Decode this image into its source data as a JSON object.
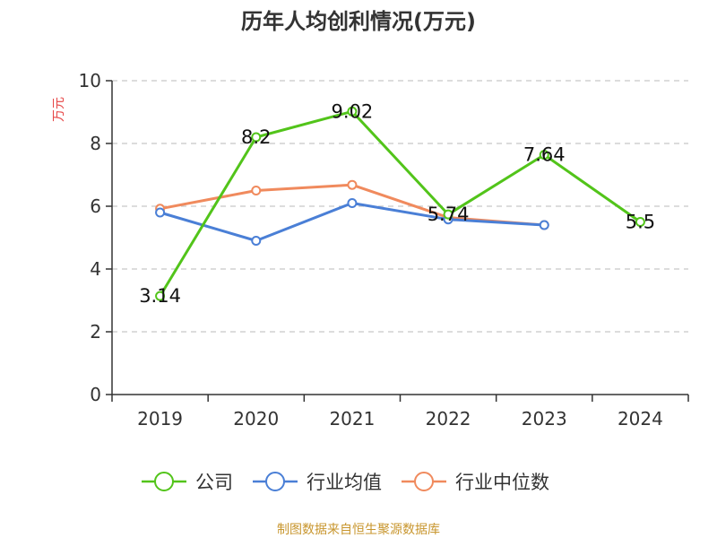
{
  "chart_data": {
    "type": "line",
    "title": "历年人均创利情况(万元)",
    "ylabel": "万元",
    "xlabel": "",
    "categories": [
      "2019",
      "2020",
      "2021",
      "2022",
      "2023",
      "2024"
    ],
    "ylim": [
      0,
      10
    ],
    "yticks": [
      0,
      2,
      4,
      6,
      8,
      10
    ],
    "grid": true,
    "legend_position": "bottom",
    "series": [
      {
        "name": "公司",
        "color": "#52c41a",
        "values": [
          3.14,
          8.2,
          9.02,
          5.74,
          7.64,
          5.5
        ],
        "labels": [
          "3.14",
          "8.2",
          "9.02",
          "5.74",
          "7.64",
          "5.5"
        ]
      },
      {
        "name": "行业均值",
        "color": "#4a7fd6",
        "values": [
          5.8,
          4.9,
          6.1,
          5.58,
          5.4,
          null
        ]
      },
      {
        "name": "行业中位数",
        "color": "#f08a5d",
        "values": [
          5.92,
          6.5,
          6.68,
          5.64,
          5.4,
          null
        ]
      }
    ]
  },
  "source_note": "制图数据来自恒生聚源数据库",
  "colors": {
    "source_note": "#c8962e",
    "ylabel": "#e64545",
    "axis": "#333333",
    "grid": "#c8c8c8"
  }
}
